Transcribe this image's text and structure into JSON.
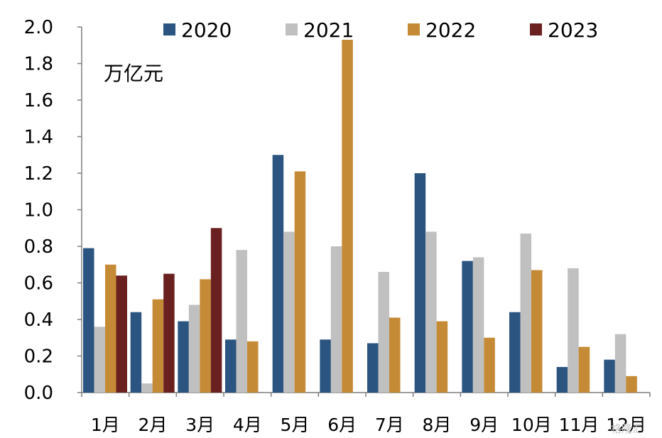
{
  "chart_data": {
    "type": "bar",
    "unit": "万亿元",
    "categories": [
      "1月",
      "2月",
      "3月",
      "4月",
      "5月",
      "6月",
      "7月",
      "8月",
      "9月",
      "10月",
      "11月",
      "12月"
    ],
    "series": [
      {
        "name": "2020",
        "color": "#2b5580",
        "values": [
          0.79,
          0.44,
          0.39,
          0.29,
          1.3,
          0.29,
          0.27,
          1.2,
          0.72,
          0.44,
          0.14,
          0.18
        ]
      },
      {
        "name": "2021",
        "color": "#c0c0c0",
        "values": [
          0.36,
          0.05,
          0.48,
          0.78,
          0.88,
          0.8,
          0.66,
          0.88,
          0.74,
          0.87,
          0.68,
          0.32
        ]
      },
      {
        "name": "2022",
        "color": "#c58a35",
        "values": [
          0.7,
          0.51,
          0.62,
          0.28,
          1.21,
          1.93,
          0.41,
          0.39,
          0.3,
          0.67,
          0.25,
          0.09
        ]
      },
      {
        "name": "2023",
        "color": "#6b2020",
        "values": [
          0.64,
          0.65,
          0.9,
          null,
          null,
          null,
          null,
          null,
          null,
          null,
          null,
          null
        ]
      }
    ],
    "ylim": [
      0,
      2.0
    ],
    "yticks": [
      "0.0",
      "0.2",
      "0.4",
      "0.6",
      "0.8",
      "1.0",
      "1.2",
      "1.4",
      "1.6",
      "1.8",
      "2.0"
    ],
    "legend_position": "top",
    "grid": false
  },
  "watermark": "格隆汇"
}
